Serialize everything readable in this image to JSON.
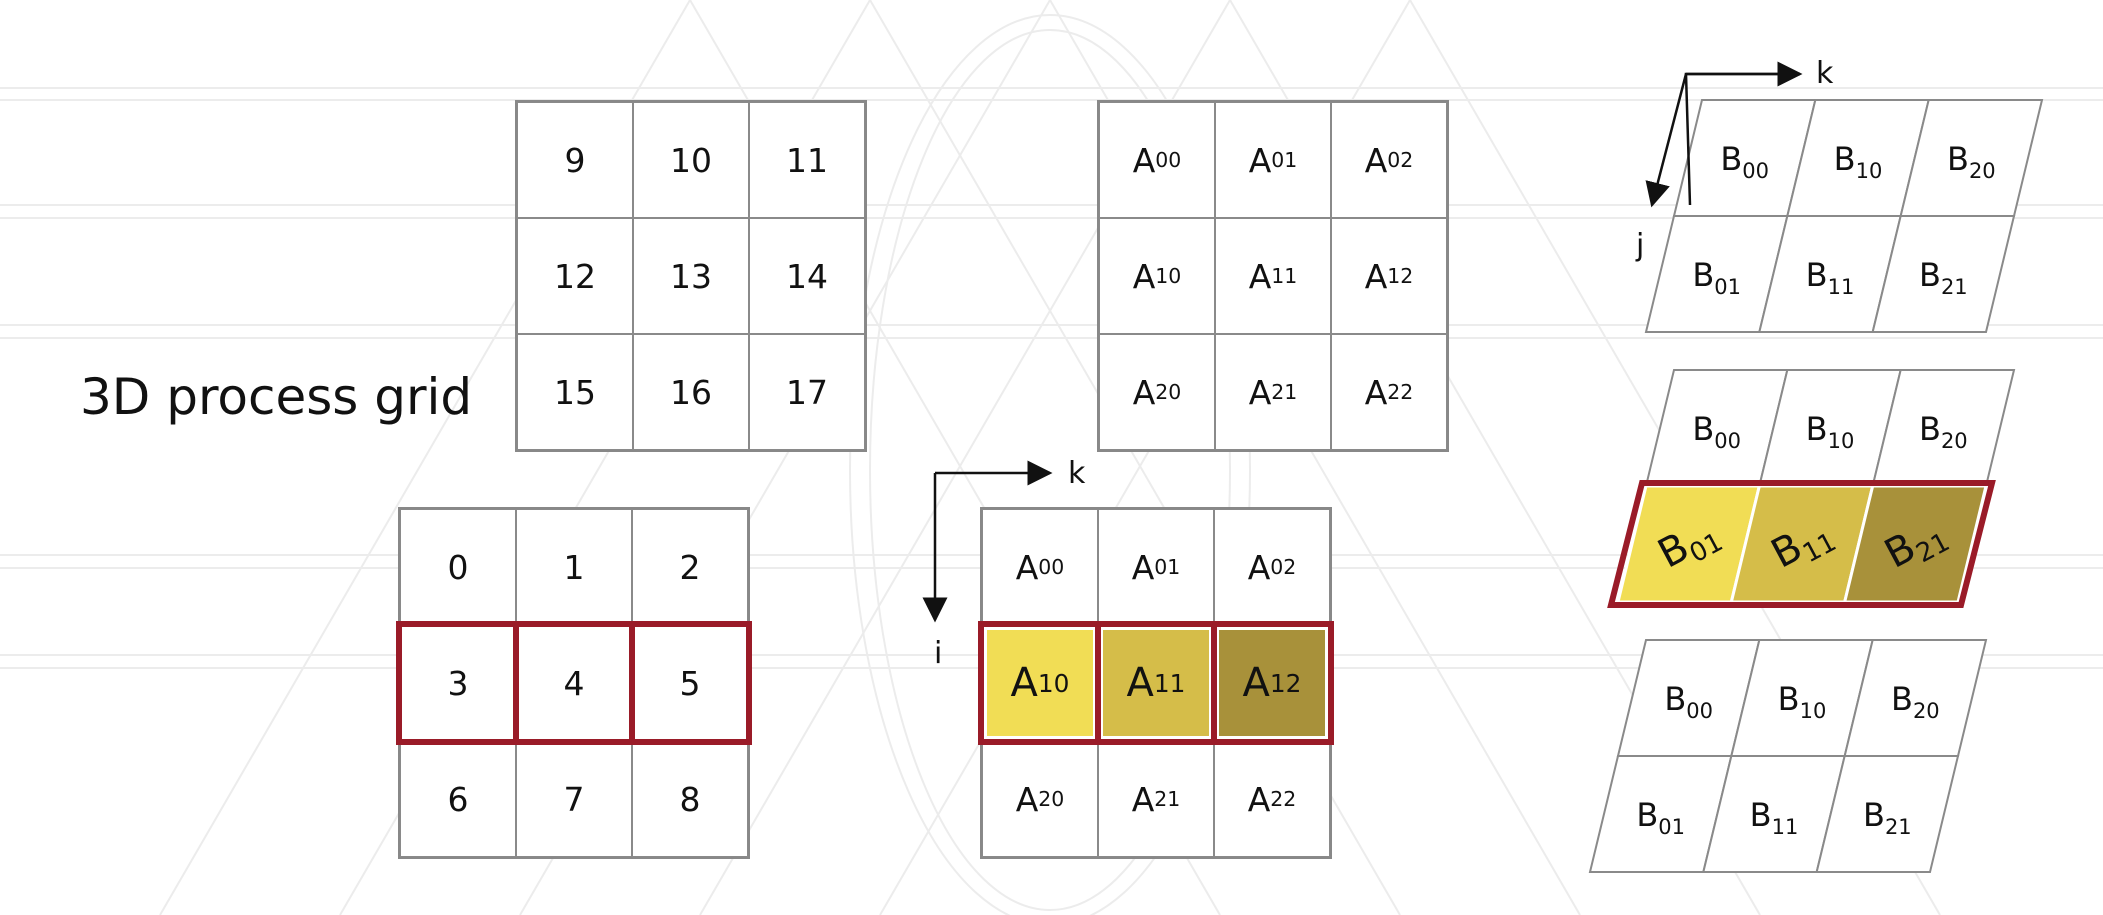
{
  "title": "3D process grid",
  "process_grid_top": [
    "9",
    "10",
    "11",
    "12",
    "13",
    "14",
    "15",
    "16",
    "17"
  ],
  "process_grid_bottom": [
    "0",
    "1",
    "2",
    "3",
    "4",
    "5",
    "6",
    "7",
    "8"
  ],
  "highlighted_process_row": 1,
  "matrix_a": [
    [
      [
        "A",
        "00"
      ],
      [
        "A",
        "01"
      ],
      [
        "A",
        "02"
      ]
    ],
    [
      [
        "A",
        "10"
      ],
      [
        "A",
        "11"
      ],
      [
        "A",
        "12"
      ]
    ],
    [
      [
        "A",
        "20"
      ],
      [
        "A",
        "21"
      ],
      [
        "A",
        "22"
      ]
    ]
  ],
  "highlighted_a_row": 1,
  "matrix_b": [
    [
      [
        "B",
        "00"
      ],
      [
        "B",
        "10"
      ],
      [
        "B",
        "20"
      ]
    ],
    [
      [
        "B",
        "01"
      ],
      [
        "B",
        "11"
      ],
      [
        "B",
        "21"
      ]
    ]
  ],
  "highlight_colors": [
    "#f1dd55",
    "#d5bd49",
    "#a8913a"
  ],
  "frame_color": "#9a1b28",
  "axis_labels": {
    "k_top": "k",
    "j": "j",
    "k_mid": "k",
    "i": "i"
  }
}
